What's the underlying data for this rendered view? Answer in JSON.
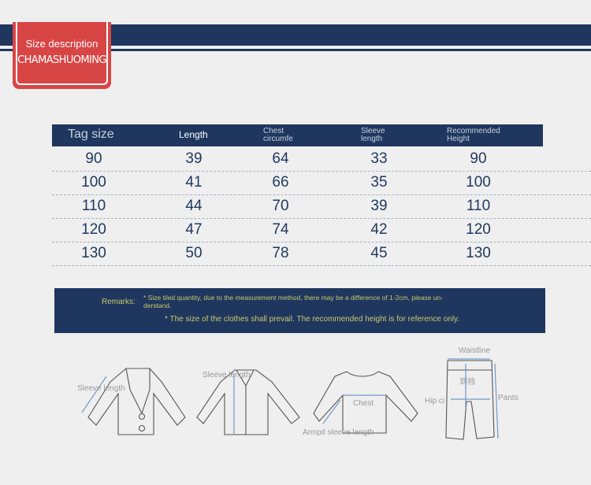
{
  "badge": {
    "title": "Size description",
    "subtitle": "CHAMASHUOMING"
  },
  "table": {
    "headers": [
      "Tag size",
      "Length",
      "Chest circumfe",
      "Sleeve length",
      "Recommended Height"
    ],
    "rows": [
      [
        "90",
        "39",
        "64",
        "33",
        "90"
      ],
      [
        "100",
        "41",
        "66",
        "35",
        "100"
      ],
      [
        "110",
        "44",
        "70",
        "39",
        "110"
      ],
      [
        "120",
        "47",
        "74",
        "42",
        "120"
      ],
      [
        "130",
        "50",
        "78",
        "45",
        "130"
      ]
    ]
  },
  "remarks": {
    "label": "Remarks:",
    "line1": "* Size tiled quantity, due to the measurement method, there may be a difference of 1-2cm, please un-",
    "line1b": "derstand.",
    "line2": "* The size of the clothes shall prevail. The recommended height is for reference only."
  },
  "diagrams": {
    "jacket_label": "Sleeve length",
    "shirt_label": "Sleeve length",
    "chest_label": "Chest",
    "armpit_label": "Armpit sleeve length",
    "waist_label": "Waistline",
    "hip_label": "Hip ci",
    "pants_label": "Pants",
    "crotch_label": "到裆"
  },
  "colors": {
    "navy": "#1f375f",
    "red": "#d84545",
    "remark_text": "#c9c86a",
    "measure": "#6f98c8"
  }
}
